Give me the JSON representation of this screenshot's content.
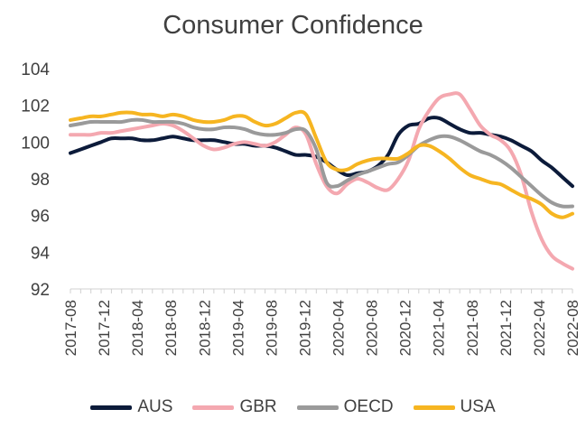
{
  "chart_data": {
    "type": "line",
    "title": "Consumer Confidence",
    "xlabel": "",
    "ylabel": "",
    "ylim": [
      92,
      104
    ],
    "yticks": [
      "92",
      "94",
      "96",
      "98",
      "100",
      "102",
      "104"
    ],
    "xtick_labels": [
      "2017-08",
      "2017-12",
      "2018-04",
      "2018-08",
      "2018-12",
      "2019-04",
      "2019-08",
      "2019-12",
      "2020-04",
      "2020-08",
      "2020-12",
      "2021-04",
      "2021-08",
      "2021-12",
      "2022-04",
      "2022-08"
    ],
    "grid": "none",
    "legend": "bottom",
    "series": [
      {
        "name": "AUS",
        "color": "#0c1b3a",
        "values": [
          99.4,
          99.6,
          99.8,
          100.0,
          100.2,
          100.2,
          100.2,
          100.1,
          100.1,
          100.2,
          100.3,
          100.2,
          100.1,
          100.1,
          100.1,
          100.0,
          99.9,
          99.9,
          99.8,
          99.8,
          99.7,
          99.5,
          99.3,
          99.3,
          99.2,
          98.9,
          98.5,
          98.2,
          98.3,
          98.4,
          98.7,
          99.3,
          100.4,
          100.9,
          101.0,
          101.3,
          101.3,
          101.0,
          100.7,
          100.5,
          100.5,
          100.4,
          100.3,
          100.1,
          99.8,
          99.5,
          99.0,
          98.6,
          98.1,
          97.6
        ]
      },
      {
        "name": "GBR",
        "color": "#f4a8b0",
        "values": [
          100.4,
          100.4,
          100.4,
          100.5,
          100.5,
          100.6,
          100.7,
          100.8,
          100.9,
          101.0,
          100.9,
          100.6,
          100.2,
          99.8,
          99.6,
          99.7,
          99.9,
          100.0,
          99.9,
          99.8,
          100.0,
          100.4,
          100.8,
          100.4,
          98.8,
          97.6,
          97.2,
          97.7,
          98.0,
          97.8,
          97.5,
          97.4,
          98.0,
          99.0,
          100.7,
          101.7,
          102.4,
          102.6,
          102.6,
          101.8,
          100.9,
          100.4,
          100.1,
          99.5,
          98.2,
          96.2,
          94.7,
          93.8,
          93.4,
          93.1
        ]
      },
      {
        "name": "OECD",
        "color": "#9a9a9a",
        "values": [
          100.9,
          101.0,
          101.1,
          101.1,
          101.1,
          101.1,
          101.2,
          101.2,
          101.1,
          101.1,
          101.1,
          101.0,
          100.8,
          100.7,
          100.7,
          100.8,
          100.8,
          100.7,
          100.5,
          100.4,
          100.4,
          100.5,
          100.7,
          100.6,
          99.6,
          97.8,
          97.6,
          97.9,
          98.2,
          98.4,
          98.6,
          98.8,
          98.9,
          99.3,
          99.8,
          100.1,
          100.3,
          100.3,
          100.1,
          99.8,
          99.5,
          99.3,
          99.0,
          98.6,
          98.1,
          97.6,
          97.1,
          96.7,
          96.5,
          96.5
        ]
      },
      {
        "name": "USA",
        "color": "#f6b521",
        "values": [
          101.2,
          101.3,
          101.4,
          101.4,
          101.5,
          101.6,
          101.6,
          101.5,
          101.5,
          101.4,
          101.5,
          101.4,
          101.2,
          101.1,
          101.1,
          101.2,
          101.4,
          101.4,
          101.1,
          100.9,
          101.0,
          101.3,
          101.6,
          101.5,
          100.2,
          98.9,
          98.5,
          98.5,
          98.8,
          99.0,
          99.1,
          99.1,
          99.1,
          99.4,
          99.8,
          99.8,
          99.5,
          99.1,
          98.6,
          98.2,
          98.0,
          97.8,
          97.7,
          97.4,
          97.1,
          96.9,
          96.6,
          96.1,
          95.9,
          96.1
        ]
      }
    ]
  }
}
